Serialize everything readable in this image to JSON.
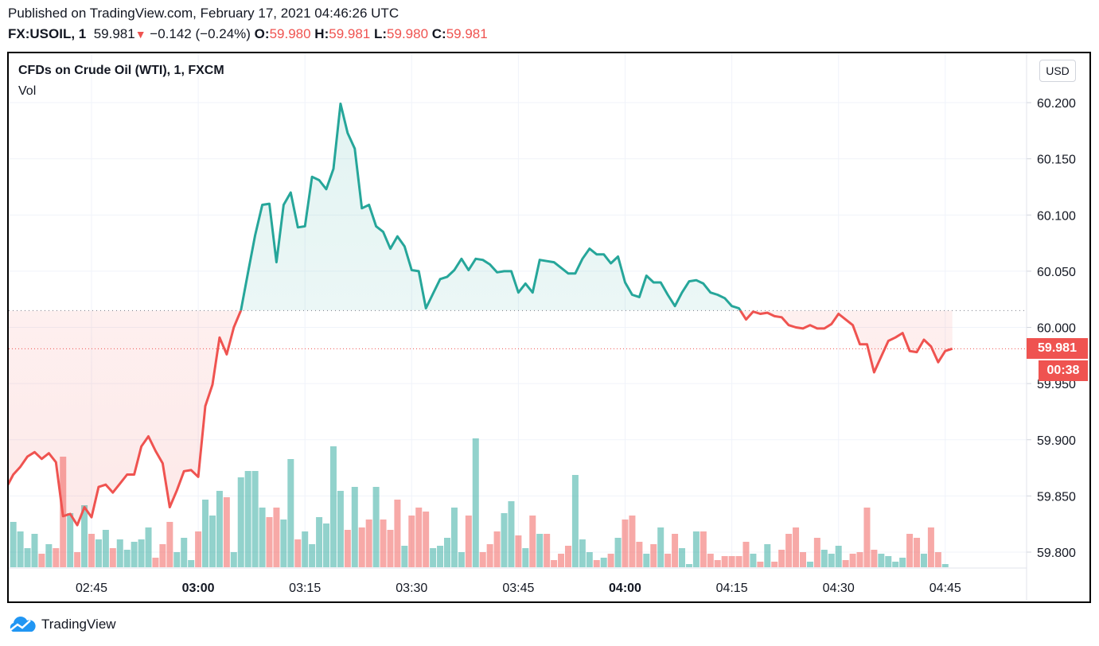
{
  "header": {
    "published": "Published on TradingView.com, February 17, 2021 04:46:26 UTC",
    "symbol": "FX:USOIL, 1",
    "last": "59.981",
    "change": "−0.142 (−0.24%)",
    "o_label": "O:",
    "o_value": "59.980",
    "h_label": "H:",
    "h_value": "59.981",
    "l_label": "L:",
    "l_value": "59.980",
    "c_label": "C:",
    "c_value": "59.981",
    "direction_icon": "triangle-down-icon"
  },
  "legend": {
    "title": "CFDs on Crude Oil (WTI), 1, FXCM",
    "indicator": "Vol"
  },
  "currency_button": "USD",
  "last_price_badge": "59.981",
  "countdown_badge": "00:38",
  "brand": "TradingView",
  "colors": {
    "up": "#26a69a",
    "down": "#ef5350",
    "up_volume": "#26a69a80",
    "down_volume": "#ef535080"
  },
  "chart_data": {
    "type": "line",
    "style": "baseline",
    "ylim": [
      59.8,
      60.2
    ],
    "grid": true,
    "baseline": 60.015,
    "last_price_line": 59.981,
    "y_ticks": [
      "60.200",
      "60.150",
      "60.100",
      "60.050",
      "60.000",
      "59.950",
      "59.900",
      "59.850",
      "59.800"
    ],
    "x_ticks": [
      {
        "label": "02:45",
        "bold": false
      },
      {
        "label": "03:00",
        "bold": true
      },
      {
        "label": "03:15",
        "bold": false
      },
      {
        "label": "03:30",
        "bold": false
      },
      {
        "label": "03:45",
        "bold": false
      },
      {
        "label": "04:00",
        "bold": true
      },
      {
        "label": "04:15",
        "bold": false
      },
      {
        "label": "04:30",
        "bold": false
      },
      {
        "label": "04:45",
        "bold": false
      }
    ],
    "price": {
      "start_time": "02:33",
      "interval_minutes": 1,
      "values": [
        59.857,
        59.869,
        59.876,
        59.885,
        59.889,
        59.883,
        59.888,
        59.88,
        59.832,
        59.834,
        59.824,
        59.84,
        59.831,
        59.858,
        59.86,
        59.853,
        59.861,
        59.869,
        59.869,
        59.894,
        59.903,
        59.89,
        59.879,
        59.84,
        59.855,
        59.872,
        59.873,
        59.867,
        59.93,
        59.949,
        59.991,
        59.976,
        60.0,
        60.015,
        60.049,
        60.082,
        60.109,
        60.11,
        60.058,
        60.109,
        60.12,
        60.089,
        60.09,
        60.134,
        60.131,
        60.123,
        60.141,
        60.199,
        60.173,
        60.159,
        60.106,
        60.109,
        60.09,
        60.085,
        60.07,
        60.081,
        60.072,
        60.051,
        60.05,
        60.017,
        60.03,
        60.043,
        60.045,
        60.051,
        60.061,
        60.051,
        60.061,
        60.06,
        60.056,
        60.049,
        60.05,
        60.05,
        60.031,
        60.039,
        60.031,
        60.06,
        60.059,
        60.058,
        60.053,
        60.048,
        60.048,
        60.061,
        60.07,
        60.065,
        60.065,
        60.057,
        60.063,
        60.04,
        60.029,
        60.027,
        60.046,
        60.04,
        60.04,
        60.029,
        60.019,
        60.031,
        60.041,
        60.042,
        60.039,
        60.031,
        60.029,
        60.026,
        60.019,
        60.017,
        60.007,
        60.014,
        60.012,
        60.013,
        60.01,
        60.009,
        60.002,
        60.0,
        59.999,
        60.002,
        59.999,
        59.999,
        60.003,
        60.012,
        60.007,
        60.002,
        59.985,
        59.985,
        59.96,
        59.974,
        59.988,
        59.991,
        59.995,
        59.979,
        59.978,
        59.989,
        59.983,
        59.969,
        59.979,
        59.981
      ]
    },
    "volume": {
      "start_time": "02:34",
      "interval_minutes": 1,
      "unit": "relative",
      "values": [
        57,
        45,
        24,
        42,
        17,
        29,
        24,
        139,
        68,
        19,
        78,
        42,
        35,
        47,
        24,
        35,
        22,
        32,
        35,
        50,
        12,
        29,
        57,
        19,
        37,
        9,
        45,
        85,
        65,
        96,
        88,
        19,
        113,
        121,
        121,
        75,
        63,
        75,
        60,
        136,
        35,
        45,
        29,
        63,
        55,
        152,
        96,
        47,
        101,
        50,
        60,
        101,
        60,
        47,
        85,
        27,
        65,
        75,
        70,
        24,
        27,
        37,
        75,
        19,
        65,
        162,
        19,
        29,
        45,
        68,
        83,
        40,
        24,
        65,
        42,
        42,
        9,
        17,
        27,
        116,
        35,
        19,
        9,
        12,
        17,
        37,
        60,
        65,
        32,
        17,
        29,
        50,
        17,
        42,
        24,
        4,
        45,
        45,
        17,
        9,
        14,
        14,
        14,
        32,
        17,
        7,
        29,
        7,
        22,
        42,
        50,
        19,
        7,
        37,
        22,
        17,
        27,
        9,
        17,
        19,
        75,
        22,
        17,
        14,
        7,
        12,
        42,
        37,
        17,
        50,
        19,
        4
      ],
      "direction": "gggg r g r r g r g r g g r g g g g g r r r g g g r g g g r g g g g g r r g g r g g g g g g r g r r g r r r g r r r g g g g g r g r r r g g r g r g r r r r g g g r g r g r r r g r g r r g g g r r r r r r r g r g r r r r r g r g g g r r r r r g g g g r r g r r g g"
    }
  }
}
